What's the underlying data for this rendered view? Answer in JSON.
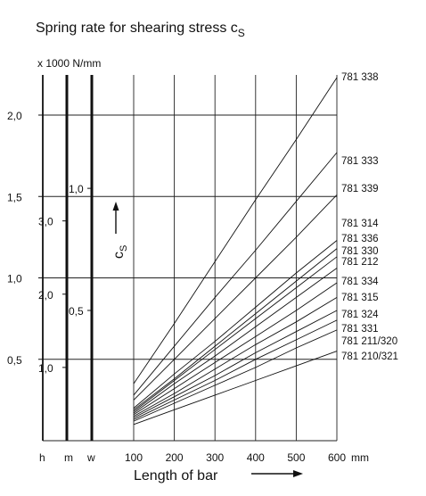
{
  "chart_data": {
    "type": "line",
    "title": "Spring rate for shearing stress c",
    "title_subscript": "S",
    "unit_label": "x 1000 N/mm",
    "ylabel": "c",
    "ylabel_subscript": "S",
    "xlabel": "Length of bar",
    "x_unit": "mm",
    "x": [
      100,
      200,
      300,
      400,
      500,
      600
    ],
    "x_tick_labels": [
      "100",
      "200",
      "300",
      "400",
      "500",
      "600"
    ],
    "xlim": [
      100,
      600
    ],
    "ylim": [
      0,
      2.2
    ],
    "grid": true,
    "scale_columns": [
      {
        "name": "h",
        "ticks": [
          {
            "value": 0.5,
            "label": "0,5"
          },
          {
            "value": 1.0,
            "label": "1,0"
          },
          {
            "value": 1.5,
            "label": "1,5"
          },
          {
            "value": 2.0,
            "label": "2,0"
          }
        ]
      },
      {
        "name": "m",
        "ticks": [
          {
            "value": 0.45,
            "label": "1,0"
          },
          {
            "value": 0.9,
            "label": "2,0"
          },
          {
            "value": 1.35,
            "label": "3,0"
          }
        ]
      },
      {
        "name": "w",
        "ticks": [
          {
            "value": 0.8,
            "label": "0,5"
          },
          {
            "value": 1.55,
            "label": "1,0"
          }
        ]
      }
    ],
    "series": [
      {
        "name": "781 338",
        "values": [
          0.35,
          0.72,
          1.1,
          1.48,
          1.85,
          2.23
        ]
      },
      {
        "name": "781 333",
        "values": [
          0.28,
          0.58,
          0.88,
          1.17,
          1.47,
          1.77
        ]
      },
      {
        "name": "781 339",
        "values": [
          0.25,
          0.5,
          0.75,
          1.0,
          1.25,
          1.51
        ]
      },
      {
        "name": "781 314",
        "values": [
          0.2,
          0.41,
          0.61,
          0.82,
          1.03,
          1.23
        ]
      },
      {
        "name": "781 336",
        "values": [
          0.19,
          0.38,
          0.58,
          0.78,
          0.98,
          1.18
        ]
      },
      {
        "name": "781 330",
        "values": [
          0.18,
          0.37,
          0.56,
          0.75,
          0.94,
          1.13
        ]
      },
      {
        "name": "781 212",
        "values": [
          0.17,
          0.35,
          0.52,
          0.7,
          0.88,
          1.06
        ]
      },
      {
        "name": "781 334",
        "values": [
          0.16,
          0.32,
          0.48,
          0.64,
          0.8,
          0.97
        ]
      },
      {
        "name": "781 315",
        "values": [
          0.15,
          0.29,
          0.44,
          0.59,
          0.73,
          0.88
        ]
      },
      {
        "name": "781 324",
        "values": [
          0.14,
          0.27,
          0.4,
          0.54,
          0.67,
          0.8
        ]
      },
      {
        "name": "781 331",
        "values": [
          0.13,
          0.25,
          0.37,
          0.5,
          0.62,
          0.74
        ]
      },
      {
        "name": "781 211/320",
        "values": [
          0.12,
          0.23,
          0.34,
          0.45,
          0.57,
          0.68
        ]
      },
      {
        "name": "781 210/321",
        "values": [
          0.1,
          0.19,
          0.28,
          0.37,
          0.46,
          0.55
        ]
      }
    ]
  }
}
